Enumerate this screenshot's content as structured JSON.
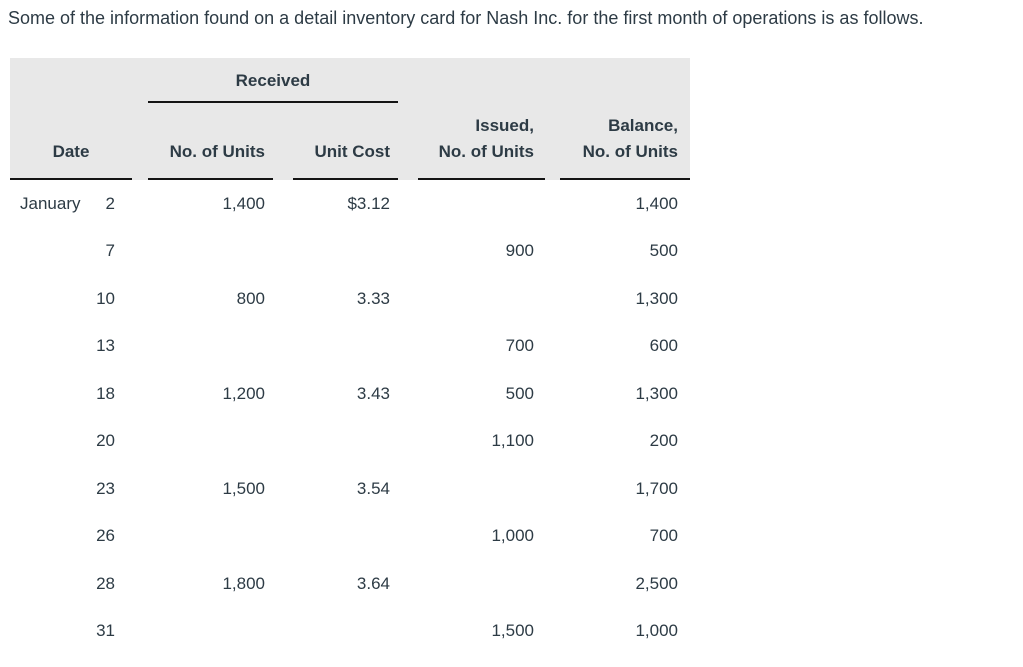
{
  "title": "Some of the information found on a detail inventory card for Nash Inc. for the first month of operations is as follows.",
  "colors": {
    "text": "#2d3b45",
    "header_bg": "#e8e8e8",
    "rule": "#141414"
  },
  "table": {
    "group_header": "Received",
    "headers": {
      "date": "Date",
      "received_units": "No. of Units",
      "unit_cost": "Unit Cost",
      "issued_line1": "Issued,",
      "issued_line2": "No. of Units",
      "balance_line1": "Balance,",
      "balance_line2": "No. of Units"
    },
    "rows": [
      {
        "month": "January",
        "day": "2",
        "received_units": "1,400",
        "unit_cost": "$3.12",
        "issued_units": "",
        "balance_units": "1,400"
      },
      {
        "month": "",
        "day": "7",
        "received_units": "",
        "unit_cost": "",
        "issued_units": "900",
        "balance_units": "500"
      },
      {
        "month": "",
        "day": "10",
        "received_units": "800",
        "unit_cost": "3.33",
        "issued_units": "",
        "balance_units": "1,300"
      },
      {
        "month": "",
        "day": "13",
        "received_units": "",
        "unit_cost": "",
        "issued_units": "700",
        "balance_units": "600"
      },
      {
        "month": "",
        "day": "18",
        "received_units": "1,200",
        "unit_cost": "3.43",
        "issued_units": "500",
        "balance_units": "1,300"
      },
      {
        "month": "",
        "day": "20",
        "received_units": "",
        "unit_cost": "",
        "issued_units": "1,100",
        "balance_units": "200"
      },
      {
        "month": "",
        "day": "23",
        "received_units": "1,500",
        "unit_cost": "3.54",
        "issued_units": "",
        "balance_units": "1,700"
      },
      {
        "month": "",
        "day": "26",
        "received_units": "",
        "unit_cost": "",
        "issued_units": "1,000",
        "balance_units": "700"
      },
      {
        "month": "",
        "day": "28",
        "received_units": "1,800",
        "unit_cost": "3.64",
        "issued_units": "",
        "balance_units": "2,500"
      },
      {
        "month": "",
        "day": "31",
        "received_units": "",
        "unit_cost": "",
        "issued_units": "1,500",
        "balance_units": "1,000"
      }
    ]
  }
}
